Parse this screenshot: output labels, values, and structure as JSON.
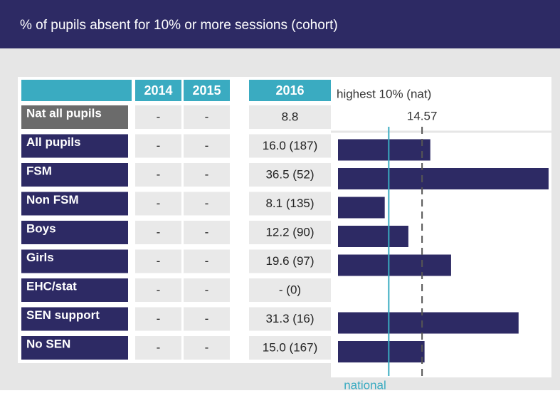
{
  "header": {
    "title": "% of pupils absent for 10% or more sessions (cohort)"
  },
  "table": {
    "columns": [
      "2014",
      "2015",
      "2016"
    ],
    "rows": [
      {
        "label": "Nat all pupils",
        "cells": [
          "-",
          "-",
          8.8
        ]
      },
      {
        "label": "All pupils",
        "cells": [
          "-",
          "-",
          "16.0 (187)"
        ]
      },
      {
        "label": "FSM",
        "cells": [
          "-",
          "-",
          "36.5 (52)"
        ]
      },
      {
        "label": "Non FSM",
        "cells": [
          "-",
          "-",
          "8.1 (135)"
        ]
      },
      {
        "label": "Boys",
        "cells": [
          "-",
          "-",
          "12.2 (90)"
        ]
      },
      {
        "label": "Girls",
        "cells": [
          "-",
          "-",
          "19.6 (97)"
        ]
      },
      {
        "label": "EHC/stat",
        "cells": [
          "-",
          "-",
          "- (0)"
        ]
      },
      {
        "label": "SEN support",
        "cells": [
          "-",
          "-",
          "31.3 (16)"
        ]
      },
      {
        "label": "No SEN",
        "cells": [
          "-",
          "-",
          "15.0 (167)"
        ]
      }
    ]
  },
  "chart_data": {
    "type": "bar",
    "orientation": "horizontal",
    "color": "#2d2a64",
    "values": [
      16.0,
      36.5,
      8.1,
      12.2,
      19.6,
      null,
      31.3,
      15.0
    ],
    "highest_label": "highest 10% (nat)",
    "highest": 14.57,
    "national_label": "national",
    "national_color": "#3aabc1",
    "xlim": [
      0,
      37
    ]
  }
}
